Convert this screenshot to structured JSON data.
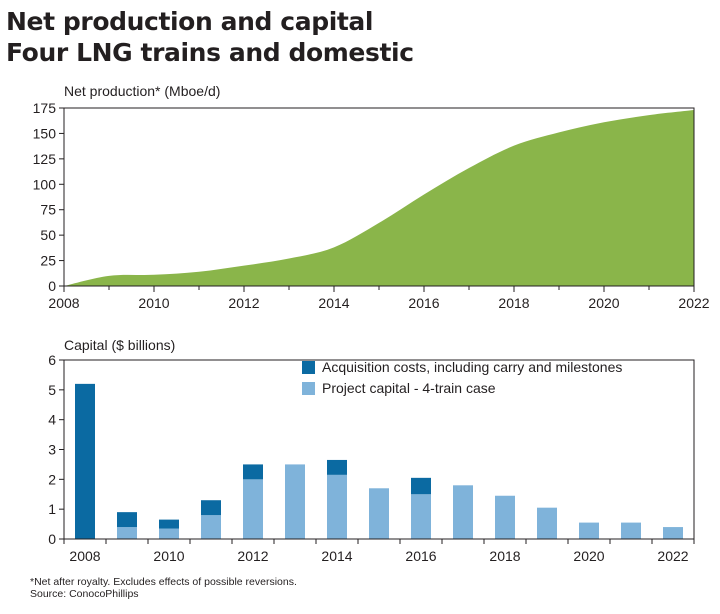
{
  "title_line1": "Net production and capital",
  "title_line2": "Four LNG trains and domestic",
  "chart_data": [
    {
      "type": "area",
      "title": "Net production and capital",
      "ylabel": "Net production* (Mboe/d)",
      "xlabel": "",
      "x": [
        2008,
        2009,
        2010,
        2011,
        2012,
        2013,
        2014,
        2015,
        2016,
        2017,
        2018,
        2019,
        2020,
        2021,
        2022
      ],
      "y": [
        0,
        10,
        11,
        14,
        20,
        27,
        38,
        62,
        90,
        116,
        138,
        151,
        161,
        168,
        173
      ],
      "xlim": [
        2008,
        2022
      ],
      "ylim": [
        0,
        175
      ],
      "xticks": [
        "2008",
        "2010",
        "2012",
        "2014",
        "2016",
        "2018",
        "2020",
        "2022"
      ],
      "yticks": [
        "0",
        "25",
        "50",
        "75",
        "100",
        "125",
        "150",
        "175"
      ],
      "color": "#8ab54a",
      "grid": false
    },
    {
      "type": "bar",
      "stacked": true,
      "ylabel": "Capital ($ billions)",
      "xlabel": "",
      "categories": [
        "2008",
        "2009",
        "2010",
        "2011",
        "2012",
        "2013",
        "2014",
        "2015",
        "2016",
        "2017",
        "2018",
        "2019",
        "2020",
        "2021",
        "2022"
      ],
      "series": [
        {
          "name": "Project capital - 4-train case",
          "color": "#7fb3da",
          "values": [
            0,
            0.4,
            0.35,
            0.8,
            2.0,
            2.5,
            2.15,
            1.7,
            1.5,
            1.8,
            1.45,
            1.05,
            0.55,
            0.55,
            0.4
          ]
        },
        {
          "name": "Acquisition costs, including carry and milestones",
          "color": "#0b6aa2",
          "values": [
            5.2,
            0.5,
            0.3,
            0.5,
            0.5,
            0,
            0.5,
            0,
            0.55,
            0,
            0,
            0,
            0,
            0,
            0
          ]
        }
      ],
      "legend_order": [
        1,
        0
      ],
      "legend": "top-right",
      "ylim": [
        0,
        6
      ],
      "yticks": [
        "0",
        "1",
        "2",
        "3",
        "4",
        "5",
        "6"
      ],
      "xticks": [
        "2008",
        "2010",
        "2012",
        "2014",
        "2016",
        "2018",
        "2020",
        "2022"
      ],
      "grid": false
    }
  ],
  "footnote_line1": "*Net after royalty. Excludes effects of possible reversions.",
  "footnote_line2": "Source:  ConocoPhillips"
}
